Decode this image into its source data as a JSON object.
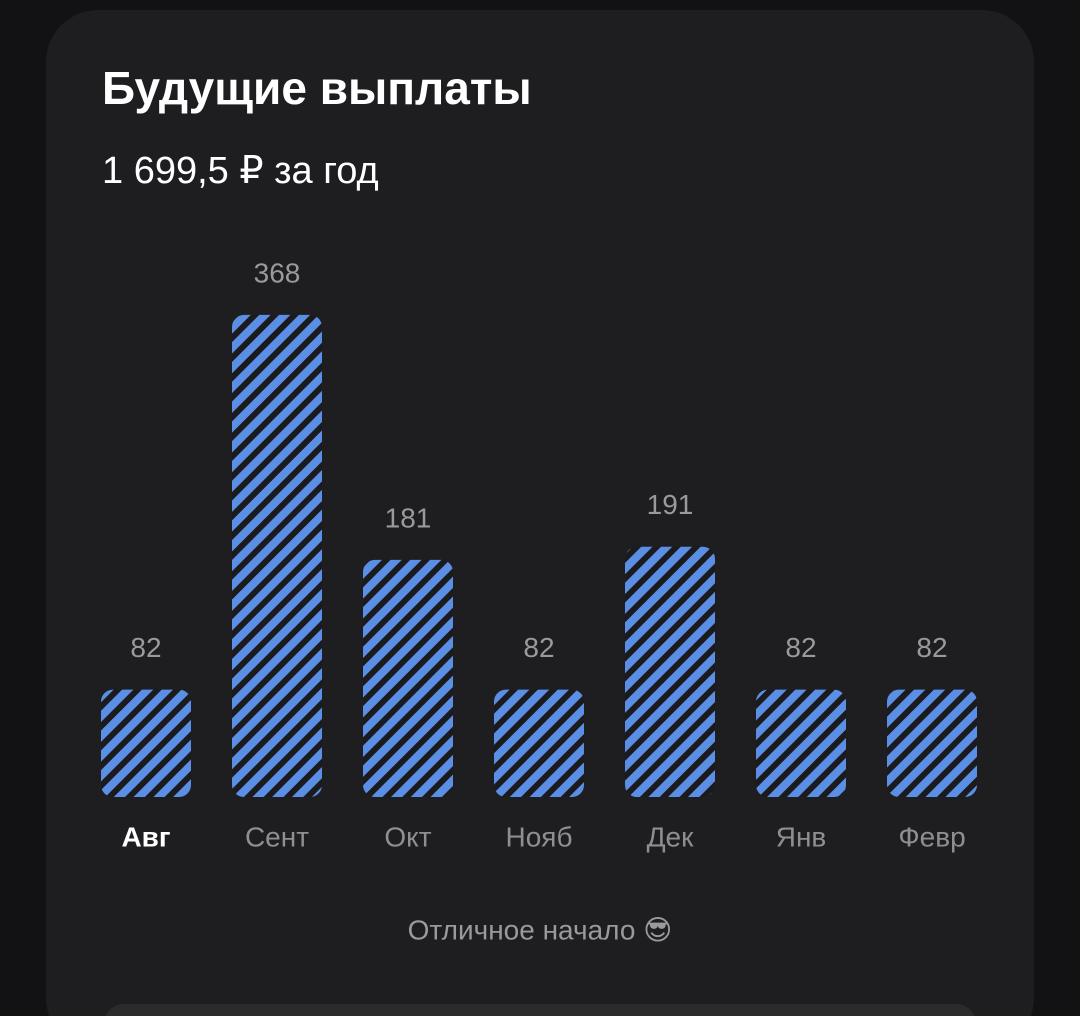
{
  "chart_data": {
    "type": "bar",
    "title": "Будущие выплаты",
    "subtitle": "1 699,5 ₽ за год",
    "categories": [
      "Авг",
      "Сент",
      "Окт",
      "Нояб",
      "Дек",
      "Янв",
      "Февр"
    ],
    "values": [
      82,
      368,
      181,
      82,
      191,
      82,
      82
    ],
    "color": "#5b8fe6",
    "selected_index": 0,
    "note": "Отличное начало 😎"
  }
}
